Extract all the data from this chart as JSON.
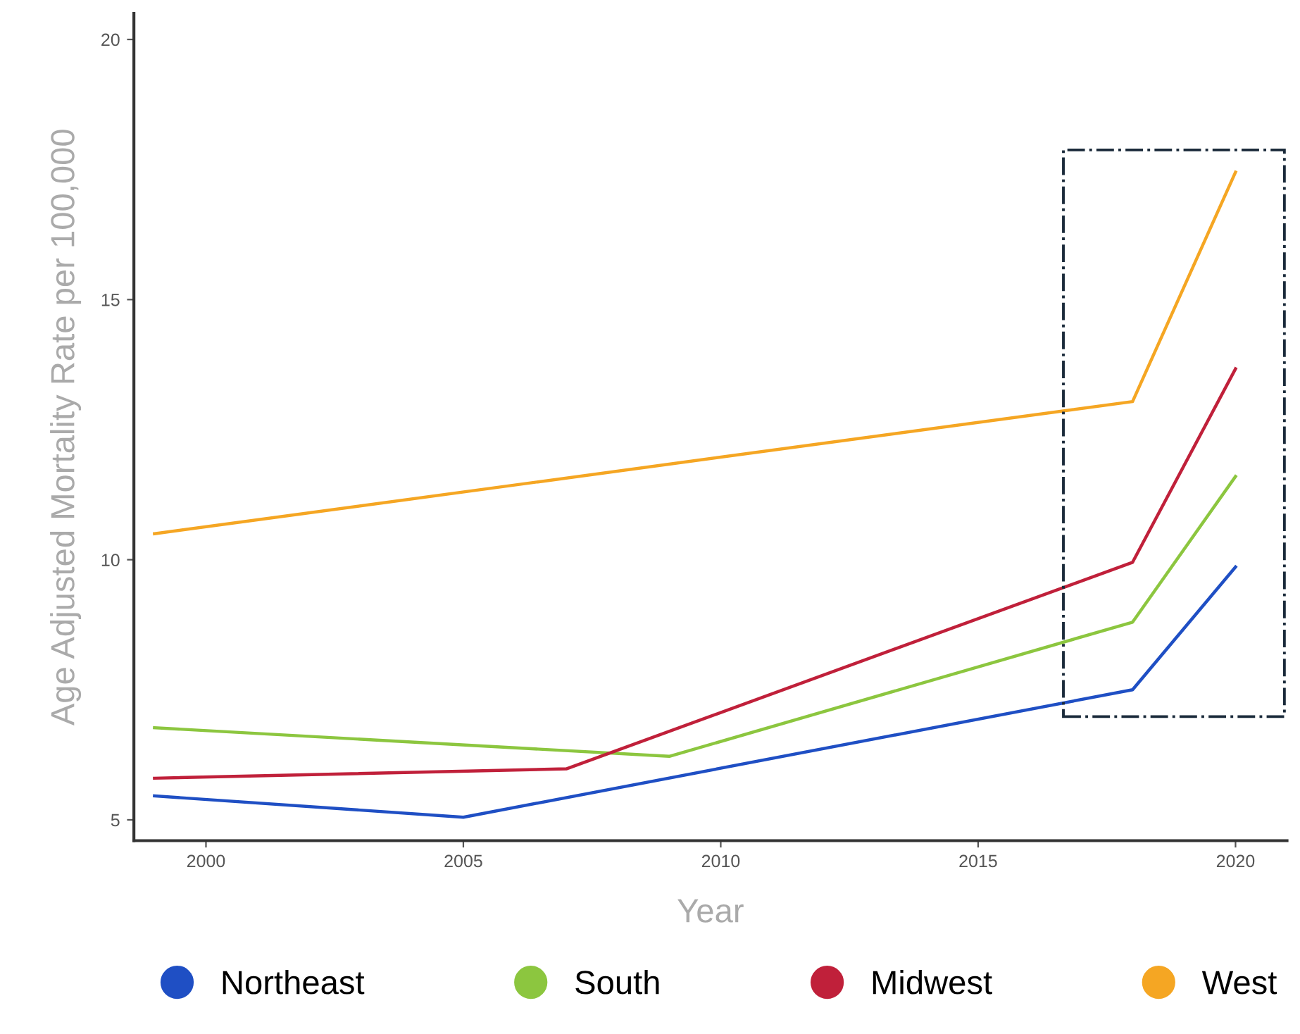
{
  "chart_data": {
    "type": "line",
    "xlabel": "Year",
    "ylabel": "Age Adjusted Mortality Rate per 100,000",
    "xlim": [
      1998.6,
      2021
    ],
    "xticks": [
      2000,
      2005,
      2010,
      2015,
      2020
    ],
    "ylim": [
      4.6,
      20.5
    ],
    "yticks": [
      5,
      10,
      15,
      20
    ],
    "grid": false,
    "legend": "bottom",
    "marker": "none",
    "line_style": "solid",
    "series": [
      {
        "name": "Northeast",
        "color": "#1f4fc4",
        "x": [
          1999,
          2005,
          2018,
          2020
        ],
        "values": [
          5.46,
          5.05,
          7.5,
          9.86
        ]
      },
      {
        "name": "South",
        "color": "#8cc63f",
        "x": [
          1999,
          2009,
          2018,
          2020
        ],
        "values": [
          6.77,
          6.22,
          8.8,
          11.6
        ]
      },
      {
        "name": "Midwest",
        "color": "#c0203a",
        "x": [
          1999,
          2007,
          2018,
          2020
        ],
        "values": [
          5.8,
          5.98,
          9.95,
          13.67
        ]
      },
      {
        "name": "West",
        "color": "#f5a623",
        "x": [
          1999,
          2018,
          2020
        ],
        "values": [
          10.5,
          13.04,
          17.45
        ]
      }
    ]
  }
}
